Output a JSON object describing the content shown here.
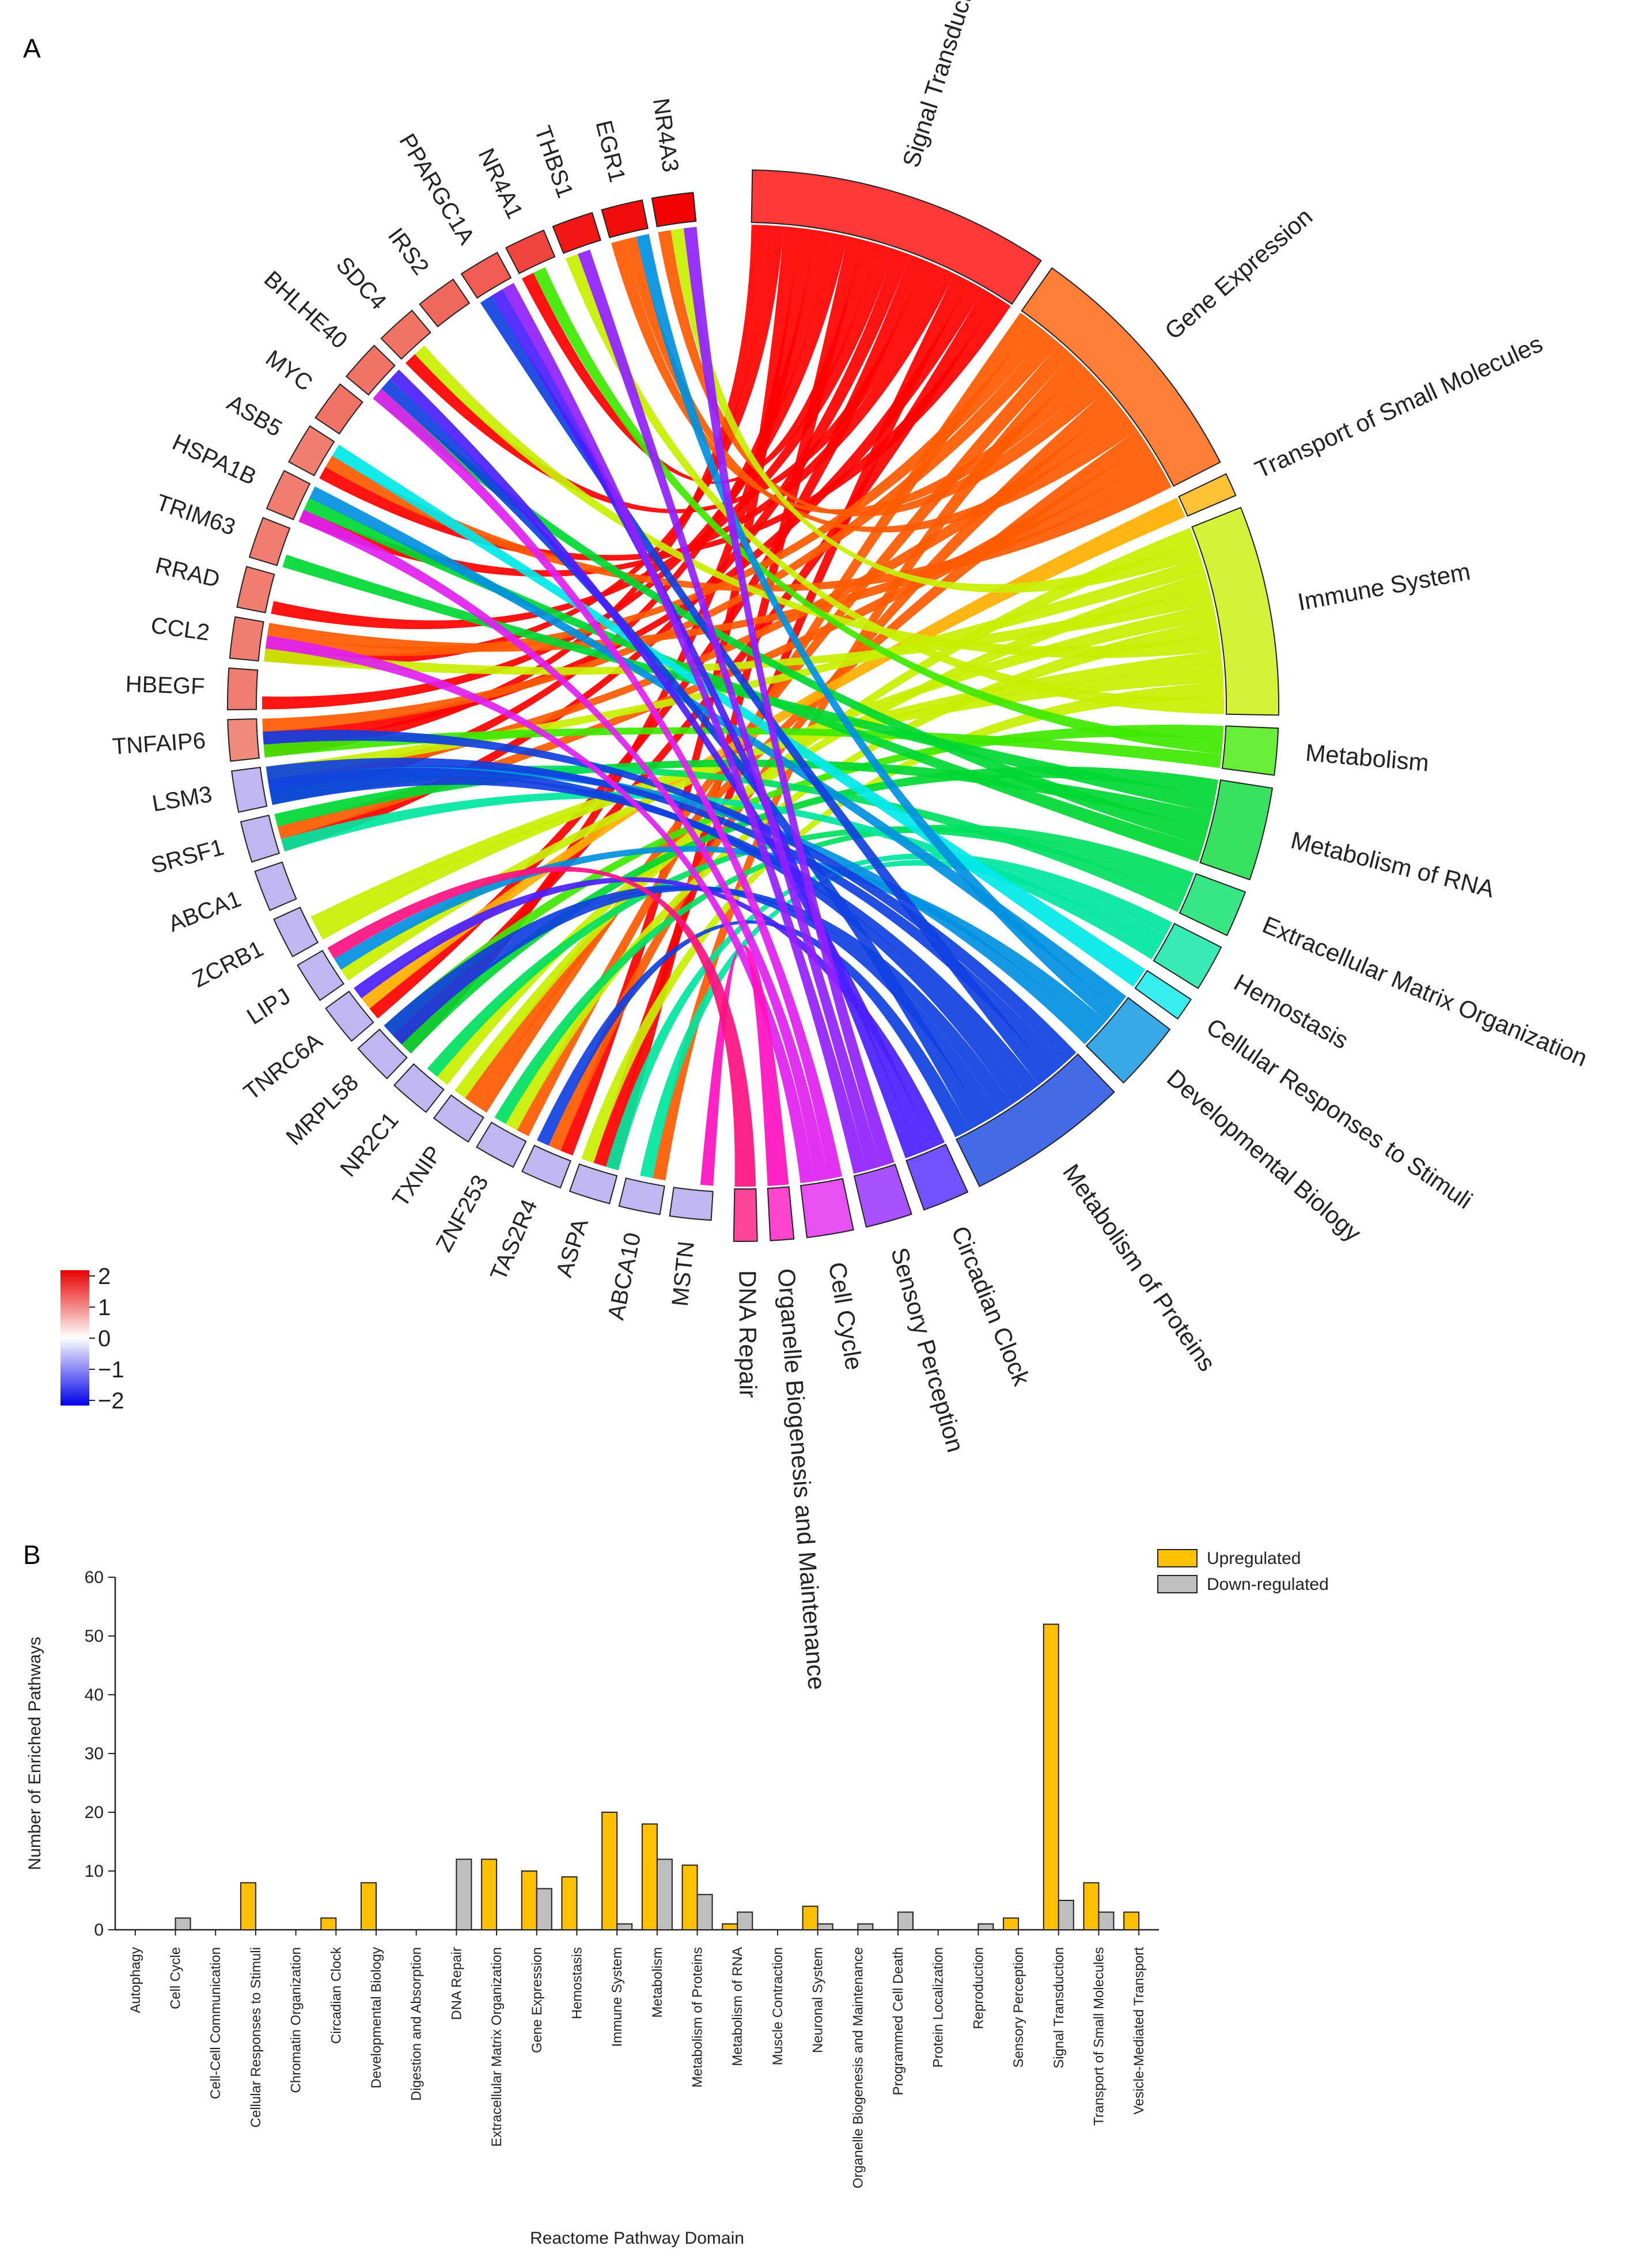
{
  "panel_a_label": "A",
  "panel_b_label": "B",
  "chart_data": [
    {
      "type": "chord",
      "genes": [
        {
          "name": "NR4A3",
          "logfc": 2.0
        },
        {
          "name": "EGR1",
          "logfc": 1.9
        },
        {
          "name": "THBS1",
          "logfc": 1.8
        },
        {
          "name": "NR4A1",
          "logfc": 1.4
        },
        {
          "name": "PPARGC1A",
          "logfc": 1.2
        },
        {
          "name": "IRS2",
          "logfc": 1.1
        },
        {
          "name": "SDC4",
          "logfc": 1.0
        },
        {
          "name": "BHLHE40",
          "logfc": 1.0
        },
        {
          "name": "MYC",
          "logfc": 1.0
        },
        {
          "name": "ASB5",
          "logfc": 0.9
        },
        {
          "name": "HSPA1B",
          "logfc": 0.9
        },
        {
          "name": "TRIM63",
          "logfc": 0.9
        },
        {
          "name": "RRAD",
          "logfc": 0.9
        },
        {
          "name": "CCL2",
          "logfc": 0.9
        },
        {
          "name": "HBEGF",
          "logfc": 0.9
        },
        {
          "name": "TNFAIP6",
          "logfc": 0.8
        },
        {
          "name": "LSM3",
          "logfc": -0.5
        },
        {
          "name": "SRSF1",
          "logfc": -0.5
        },
        {
          "name": "ABCA1",
          "logfc": -0.5
        },
        {
          "name": "ZCRB1",
          "logfc": -0.5
        },
        {
          "name": "LIPJ",
          "logfc": -0.5
        },
        {
          "name": "TNRC6A",
          "logfc": -0.5
        },
        {
          "name": "MRPL58",
          "logfc": -0.5
        },
        {
          "name": "NR2C1",
          "logfc": -0.5
        },
        {
          "name": "TXNIP",
          "logfc": -0.5
        },
        {
          "name": "ZNF253",
          "logfc": -0.5
        },
        {
          "name": "TAS2R4",
          "logfc": -0.5
        },
        {
          "name": "ASPA",
          "logfc": -0.5
        },
        {
          "name": "ABCA10",
          "logfc": -0.5
        },
        {
          "name": "MSTN",
          "logfc": -0.5
        }
      ],
      "pathways": [
        {
          "name": "Signal Transduction",
          "color": "#ff0000",
          "size": 13
        },
        {
          "name": "Gene Expression",
          "color": "#ff5a00",
          "size": 11
        },
        {
          "name": "Transport of Small Molecules",
          "color": "#ffb000",
          "size": 1
        },
        {
          "name": "Immune System",
          "color": "#c8ee00",
          "size": 9
        },
        {
          "name": "Metabolism",
          "color": "#3ee800",
          "size": 2
        },
        {
          "name": "Metabolism of RNA",
          "color": "#00d832",
          "size": 4
        },
        {
          "name": "Extracellular Matrix Organization",
          "color": "#00e060",
          "size": 2
        },
        {
          "name": "Hemostasis",
          "color": "#00e6a0",
          "size": 2
        },
        {
          "name": "Cellular Responses to Stimuli",
          "color": "#00e8e8",
          "size": 1
        },
        {
          "name": "Developmental Biology",
          "color": "#0090e0",
          "size": 3
        },
        {
          "name": "Metabolism of Proteins",
          "color": "#1040e0",
          "size": 7
        },
        {
          "name": "Circadian Clock",
          "color": "#4a20ff",
          "size": 2
        },
        {
          "name": "Sensory Perception",
          "color": "#9020ff",
          "size": 2
        },
        {
          "name": "Cell Cycle",
          "color": "#e020f0",
          "size": 2
        },
        {
          "name": "Organelle Biogenesis and Maintenance",
          "color": "#ff10c0",
          "size": 1
        },
        {
          "name": "DNA Repair",
          "color": "#ff1080",
          "size": 1
        }
      ],
      "colorbar": {
        "ticks": [
          "2",
          "1",
          "0",
          "−1",
          "−2"
        ]
      }
    },
    {
      "type": "bar",
      "xlabel": "Reactome Pathway Domain",
      "ylabel": "Number of Enriched Pathways",
      "ylim": [
        0,
        60
      ],
      "yticks": [
        0,
        10,
        20,
        30,
        40,
        50,
        60
      ],
      "categories": [
        "Autophagy",
        "Cell Cycle",
        "Cell-Cell Communication",
        "Cellular Responses to Stimuli",
        "Chromatin Organization",
        "Circadian Clock",
        "Developmental Biology",
        "Digestion and Absorption",
        "DNA Repair",
        "Extracellular Matrix Organization",
        "Gene Expression",
        "Hemostasis",
        "Immune System",
        "Metabolism",
        "Metabolism of Proteins",
        "Metabolism of RNA",
        "Muscle Contraction",
        "Neuronal System",
        "Organelle Biogenesis and Maintenance",
        "Programmed Cell Death",
        "Protein Localization",
        "Reproduction",
        "Sensory Perception",
        "Signal Transduction",
        "Transport of Small Molecules",
        "Vesicle-Mediated Transport"
      ],
      "series": [
        {
          "name": "Upregulated",
          "color": "#ffc000",
          "values": [
            0,
            0,
            0,
            8,
            0,
            2,
            8,
            0,
            0,
            12,
            10,
            9,
            20,
            18,
            11,
            1,
            0,
            4,
            0,
            0,
            0,
            0,
            2,
            52,
            8,
            3
          ]
        },
        {
          "name": "Down-regulated",
          "color": "#bfbfbf",
          "values": [
            0,
            2,
            0,
            0,
            0,
            0,
            0,
            0,
            12,
            0,
            7,
            0,
            1,
            12,
            6,
            3,
            0,
            1,
            1,
            3,
            0,
            1,
            0,
            5,
            3,
            0
          ]
        }
      ]
    }
  ]
}
